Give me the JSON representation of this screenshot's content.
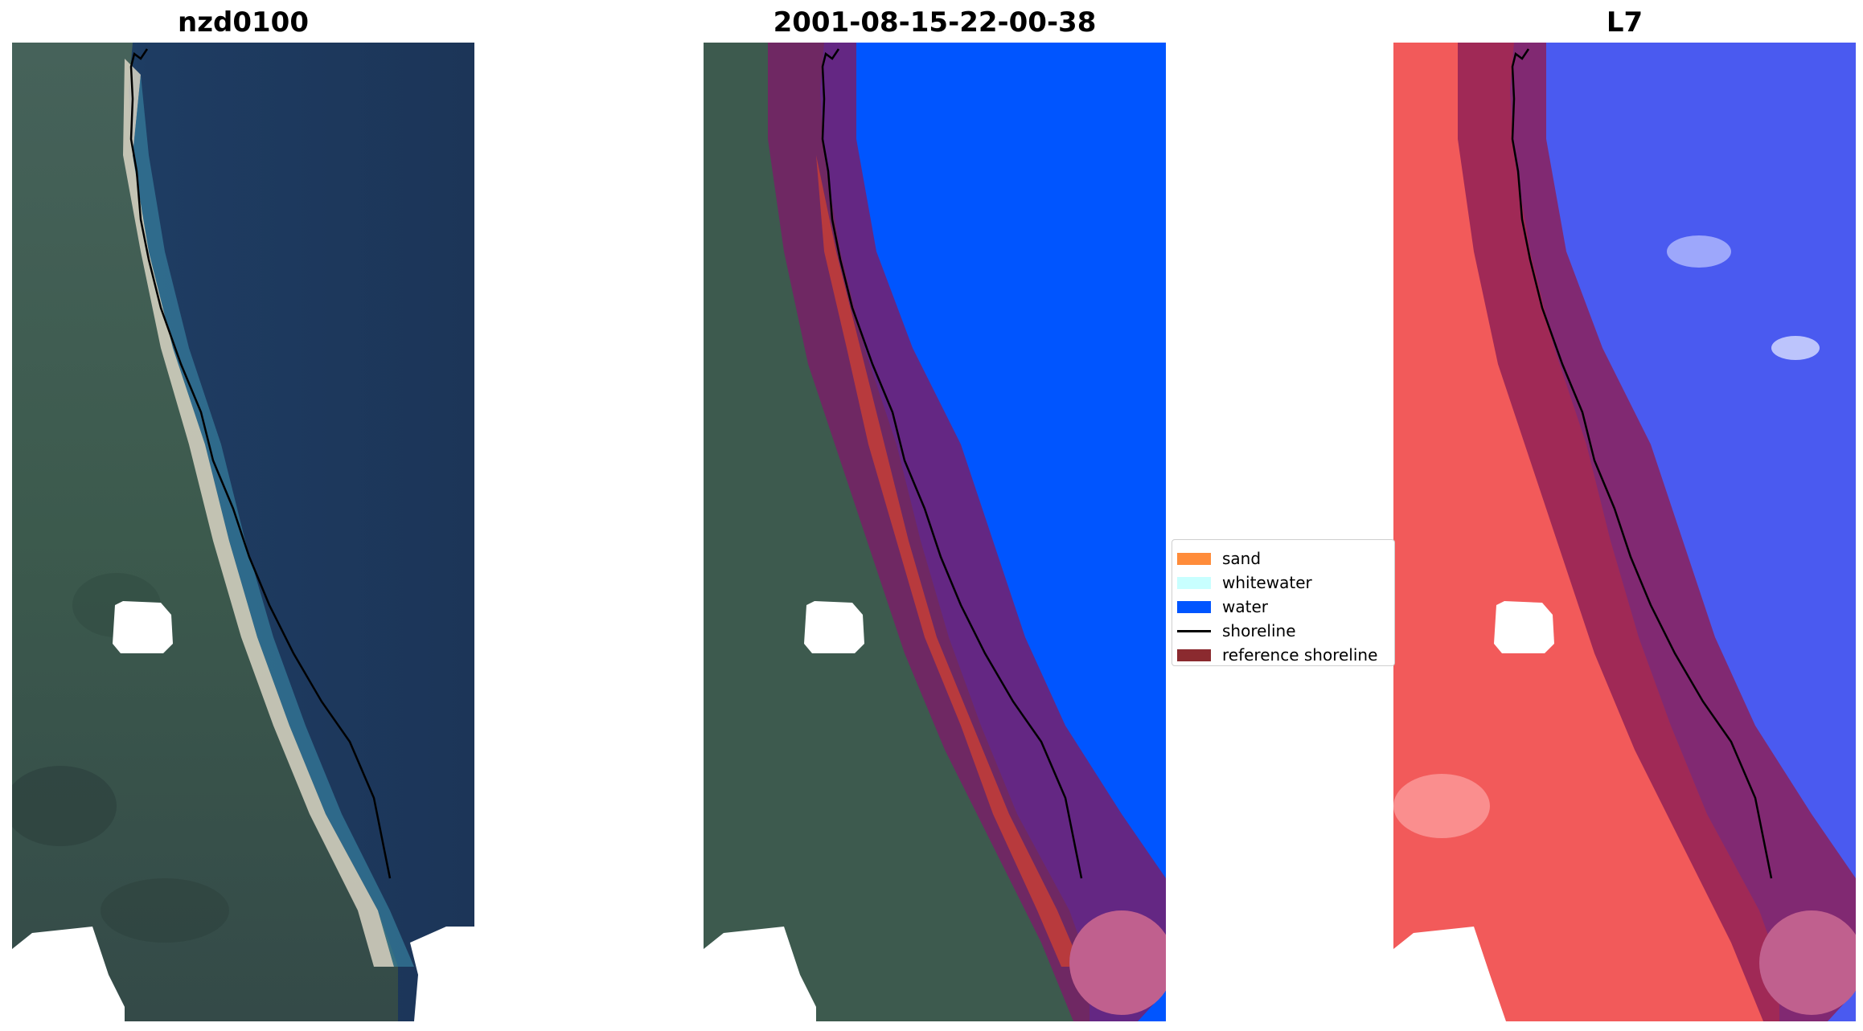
{
  "titles": {
    "left": "nzd0100",
    "middle": "2001-08-15-22-00-38",
    "right": "L7"
  },
  "legend": {
    "items": [
      {
        "label": "sand",
        "color": "#ff8c3a",
        "kind": "patch"
      },
      {
        "label": "whitewater",
        "color": "#c8ffff",
        "kind": "patch"
      },
      {
        "label": "water",
        "color": "#0055ff",
        "kind": "patch"
      },
      {
        "label": "shoreline",
        "color": "#000000",
        "kind": "line"
      },
      {
        "label": "reference shoreline",
        "color": "#8b2a2f",
        "kind": "patch"
      }
    ]
  },
  "colors": {
    "land": "#3d5a4e",
    "ocean": "#1e3a5e",
    "water_class": "#0055ff",
    "buffer": "#8e1f55",
    "index_land": "#f25a5a",
    "index_water": "#4a5af0"
  }
}
